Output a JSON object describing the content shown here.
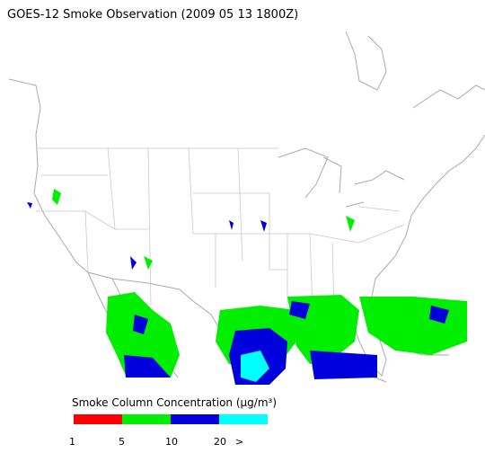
{
  "title": "GOES-12 Smoke Observation (2009 05 13  1800Z)",
  "legend": {
    "title": "Smoke Column Concentration (μg/m³)",
    "colors": [
      "#ff0000",
      "#00ee00",
      "#0000dd",
      "#00ffff"
    ],
    "labels": [
      "1",
      "5",
      "10",
      "20",
      ">"
    ]
  }
}
